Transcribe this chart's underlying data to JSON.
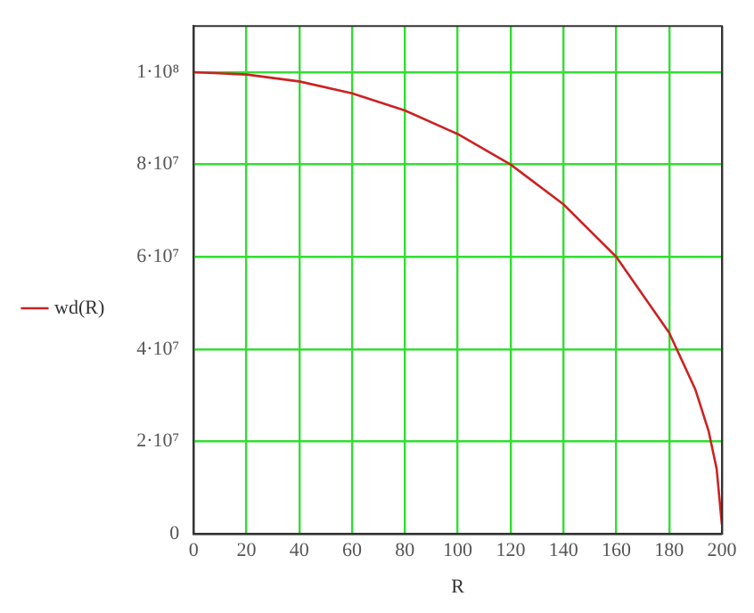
{
  "chart_data": {
    "type": "line",
    "xlabel": "R",
    "x": [
      0,
      20,
      40,
      60,
      80,
      100,
      120,
      140,
      160,
      180,
      190,
      195,
      198,
      200
    ],
    "series": [
      {
        "name": "wd(R)",
        "color": "#cc2222",
        "values": [
          100000000,
          99500000,
          98000000,
          95400000,
          91700000,
          86600000,
          80000000,
          71400000,
          60000000,
          43600000,
          31200000,
          22200000,
          14100000,
          2000000
        ]
      }
    ],
    "xlim": [
      0,
      200
    ],
    "xticks": [
      0,
      20,
      40,
      60,
      80,
      100,
      120,
      140,
      160,
      180,
      200
    ],
    "ylim": [
      0,
      110000000
    ],
    "yticks": [
      0,
      {
        "value": 20000000,
        "label": "2·10⁷"
      },
      {
        "value": 40000000,
        "label": "4·10⁷"
      },
      {
        "value": 60000000,
        "label": "6·10⁷"
      },
      {
        "value": 80000000,
        "label": "8·10⁷"
      },
      {
        "value": 100000000,
        "label": "1·10⁸"
      }
    ],
    "grid": true,
    "legend": "left",
    "marker": "none",
    "line_style": "solid"
  }
}
